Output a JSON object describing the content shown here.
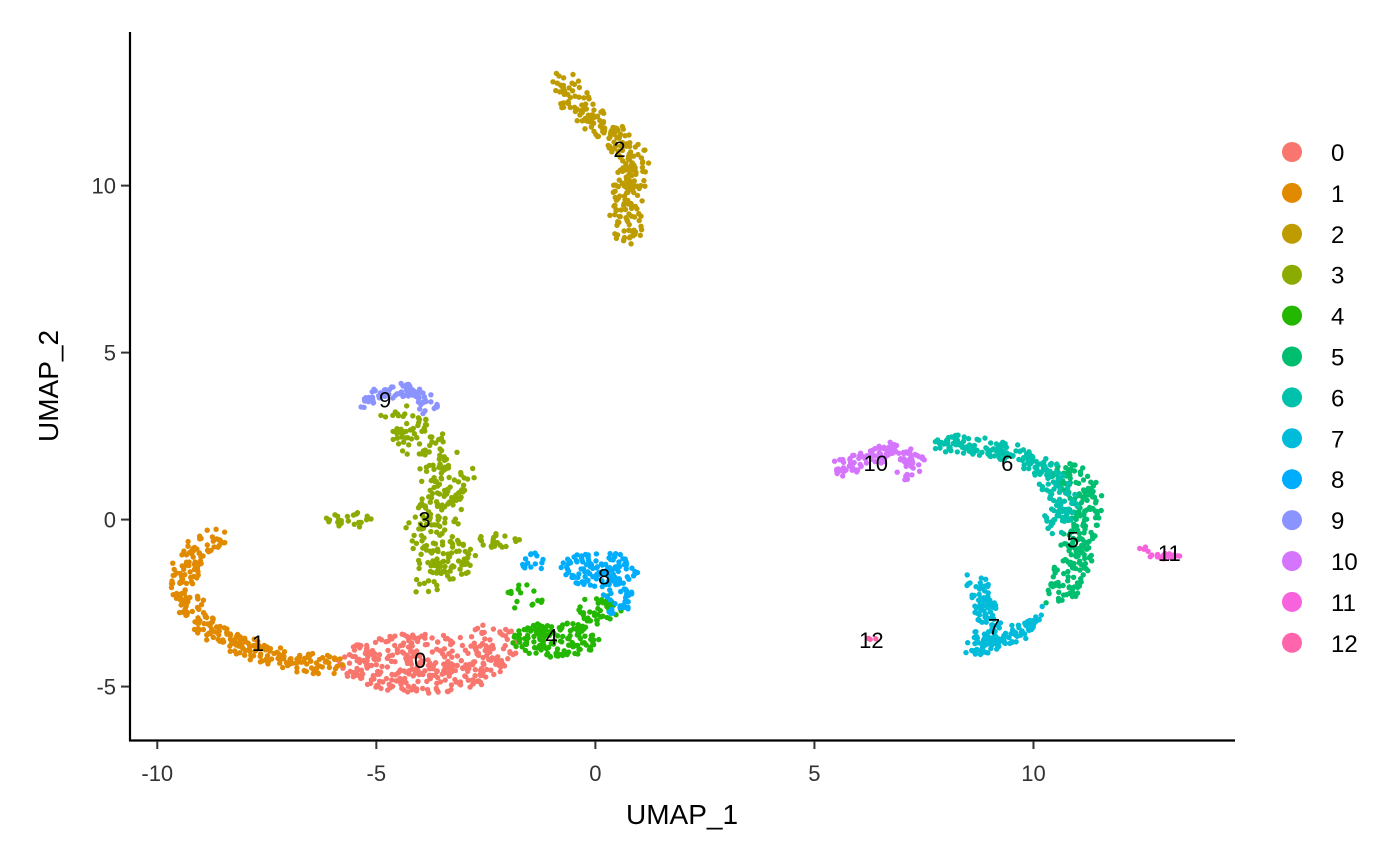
{
  "chart_data": {
    "type": "scatter",
    "xlabel": "UMAP_1",
    "ylabel": "UMAP_2",
    "xlim": [
      -10.6,
      14.6
    ],
    "ylim": [
      -6.6,
      14.6
    ],
    "x_ticks": [
      -10,
      -5,
      0,
      5,
      10
    ],
    "x_tick_labels": [
      "-10",
      "-5",
      "0",
      "5",
      "10"
    ],
    "y_ticks": [
      -5,
      0,
      5,
      10
    ],
    "y_tick_labels": [
      "-5",
      "0",
      "5",
      "10"
    ],
    "grid": false,
    "legend_position": "right",
    "series": [
      {
        "name": "0",
        "color": "#F8766D",
        "label_pos": [
          -4.0,
          -4.2
        ],
        "blobs": [
          {
            "cx": -3.9,
            "cy": -4.3,
            "rx": 2.0,
            "ry": 0.9,
            "n": 330
          },
          {
            "cx": -2.3,
            "cy": -3.7,
            "rx": 0.6,
            "ry": 0.6,
            "n": 40
          }
        ]
      },
      {
        "name": "1",
        "color": "#E18A00",
        "label_pos": [
          -7.7,
          -3.7
        ],
        "path": [
          [
            -8.7,
            -0.5
          ],
          [
            -9.3,
            -1.2
          ],
          [
            -9.4,
            -2.3
          ],
          [
            -8.9,
            -3.2
          ],
          [
            -8.0,
            -3.8
          ],
          [
            -7.0,
            -4.2
          ],
          [
            -6.0,
            -4.4
          ]
        ],
        "spread": 0.38,
        "n": 300
      },
      {
        "name": "2",
        "color": "#BE9C00",
        "label_pos": [
          0.55,
          11.1
        ],
        "path": [
          [
            -0.8,
            13.2
          ],
          [
            -0.4,
            12.4
          ],
          [
            0.3,
            11.6
          ],
          [
            0.9,
            10.8
          ],
          [
            0.7,
            9.6
          ],
          [
            0.7,
            8.3
          ]
        ],
        "spread": 0.38,
        "n": 270
      },
      {
        "name": "3",
        "color": "#8CAB00",
        "label_pos": [
          -3.9,
          0.0
        ],
        "path": [
          [
            -4.5,
            3.0
          ],
          [
            -3.9,
            2.2
          ],
          [
            -3.3,
            1.4
          ],
          [
            -3.6,
            0.4
          ],
          [
            -3.8,
            -0.6
          ],
          [
            -3.2,
            -1.2
          ],
          [
            -3.9,
            -1.8
          ]
        ],
        "spread": 0.6,
        "n": 290,
        "extra": [
          {
            "cx": -5.6,
            "cy": 0.0,
            "rx": 0.55,
            "ry": 0.25,
            "n": 22
          },
          {
            "cx": -2.2,
            "cy": -0.6,
            "rx": 0.5,
            "ry": 0.25,
            "n": 20
          }
        ]
      },
      {
        "name": "4",
        "color": "#24B700",
        "label_pos": [
          -1.0,
          -3.5
        ],
        "blobs": [
          {
            "cx": -0.9,
            "cy": -3.6,
            "rx": 1.0,
            "ry": 0.55,
            "n": 140
          },
          {
            "cx": 0.1,
            "cy": -2.7,
            "rx": 0.5,
            "ry": 0.45,
            "n": 40
          },
          {
            "cx": -1.6,
            "cy": -2.3,
            "rx": 0.5,
            "ry": 0.4,
            "n": 16
          }
        ]
      },
      {
        "name": "5",
        "color": "#00BE70",
        "label_pos": [
          10.9,
          -0.6
        ],
        "path": [
          [
            10.6,
            1.6
          ],
          [
            11.2,
            0.8
          ],
          [
            11.1,
            -0.4
          ],
          [
            10.9,
            -1.4
          ],
          [
            10.6,
            -2.4
          ]
        ],
        "spread": 0.42,
        "n": 230
      },
      {
        "name": "6",
        "color": "#00C1AB",
        "label_pos": [
          9.4,
          1.7
        ],
        "path": [
          [
            7.9,
            2.3
          ],
          [
            8.8,
            2.2
          ],
          [
            9.6,
            2.0
          ],
          [
            10.3,
            1.5
          ],
          [
            10.7,
            0.5
          ],
          [
            10.5,
            -0.3
          ]
        ],
        "spread": 0.35,
        "n": 230
      },
      {
        "name": "7",
        "color": "#00BBDA",
        "label_pos": [
          9.1,
          -3.2
        ],
        "path": [
          [
            8.7,
            -1.8
          ],
          [
            8.9,
            -2.6
          ],
          [
            9.0,
            -3.3
          ],
          [
            8.7,
            -3.9
          ],
          [
            9.6,
            -3.4
          ],
          [
            10.1,
            -2.8
          ]
        ],
        "spread": 0.3,
        "n": 190
      },
      {
        "name": "8",
        "color": "#00ACFC",
        "label_pos": [
          0.2,
          -1.7
        ],
        "blobs": [
          {
            "cx": 0.1,
            "cy": -1.5,
            "rx": 0.9,
            "ry": 0.55,
            "n": 120
          },
          {
            "cx": 0.5,
            "cy": -2.3,
            "rx": 0.35,
            "ry": 0.6,
            "n": 35
          },
          {
            "cx": -1.4,
            "cy": -1.3,
            "rx": 0.35,
            "ry": 0.4,
            "n": 15
          }
        ]
      },
      {
        "name": "9",
        "color": "#8B93FF",
        "label_pos": [
          -4.8,
          3.6
        ],
        "path": [
          [
            -5.3,
            3.4
          ],
          [
            -4.9,
            3.8
          ],
          [
            -4.4,
            3.9
          ],
          [
            -3.9,
            3.6
          ],
          [
            -3.8,
            3.3
          ]
        ],
        "spread": 0.25,
        "n": 85
      },
      {
        "name": "10",
        "color": "#D575FE",
        "label_pos": [
          6.4,
          1.7
        ],
        "path": [
          [
            5.5,
            1.5
          ],
          [
            6.2,
            1.8
          ],
          [
            6.8,
            2.1
          ],
          [
            7.4,
            1.9
          ],
          [
            6.9,
            1.2
          ]
        ],
        "spread": 0.3,
        "n": 110
      },
      {
        "name": "11",
        "color": "#F962DD",
        "label_pos": [
          13.1,
          -1.0
        ],
        "blobs": [
          {
            "cx": 13.0,
            "cy": -1.1,
            "rx": 0.35,
            "ry": 0.1,
            "n": 22
          },
          {
            "cx": 12.5,
            "cy": -0.9,
            "rx": 0.2,
            "ry": 0.1,
            "n": 4
          }
        ]
      },
      {
        "name": "12",
        "color": "#FF65AC",
        "label_pos": [
          6.3,
          -3.6
        ],
        "blobs": [
          {
            "cx": 6.3,
            "cy": -3.6,
            "rx": 0.12,
            "ry": 0.06,
            "n": 4
          }
        ]
      }
    ]
  }
}
